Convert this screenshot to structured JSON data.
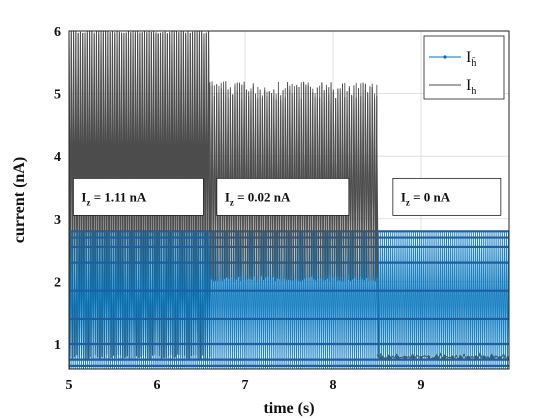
{
  "chart_data": {
    "type": "line",
    "title": "",
    "xlabel": "time (s)",
    "ylabel": "current (nA)",
    "xlim": [
      5,
      10
    ],
    "ylim": [
      0.6,
      6
    ],
    "x_ticks": [
      5,
      6,
      7,
      8,
      9
    ],
    "y_ticks": [
      1,
      2,
      3,
      4,
      5,
      6
    ],
    "grid": true,
    "legend_position": "top-right",
    "colors": {
      "I_hbar": "#0072BD",
      "I_h": "#4d4d4d"
    },
    "series": [
      {
        "name": "I_h",
        "legend_symbol": "I",
        "legend_sub": "h",
        "color": "#4d4d4d",
        "description": "oscillating current with envelope per segment",
        "segments": [
          {
            "x_start": 5.0,
            "x_end": 6.6,
            "low": 0.75,
            "high": 6.0
          },
          {
            "x_start": 6.6,
            "x_end": 8.5,
            "low": 2.0,
            "high": 5.2
          },
          {
            "x_start": 8.5,
            "x_end": 10.0,
            "low": 0.75,
            "high": 0.85
          }
        ]
      },
      {
        "name": "I_hbar",
        "legend_symbol": "I",
        "legend_sub": "h̄",
        "color": "#0072BD",
        "description": "oscillating current between envelope limits",
        "segments": [
          {
            "x_start": 5.0,
            "x_end": 10.0,
            "low": 0.6,
            "high": 2.8
          }
        ],
        "levels": [
          0.65,
          0.75,
          1.0,
          1.4,
          1.85,
          2.3,
          2.55,
          2.7,
          2.8
        ]
      }
    ],
    "annotations": [
      {
        "label": "I",
        "sub": "z",
        "rest": " = 1.11 nA",
        "x": 5.05,
        "y": 3.15
      },
      {
        "label": "I",
        "sub": "z",
        "rest": " = 0.02 nA",
        "x": 6.68,
        "y": 3.15
      },
      {
        "label": "I",
        "sub": "z",
        "rest": " = 0 nA",
        "x": 8.68,
        "y": 3.15
      }
    ]
  }
}
